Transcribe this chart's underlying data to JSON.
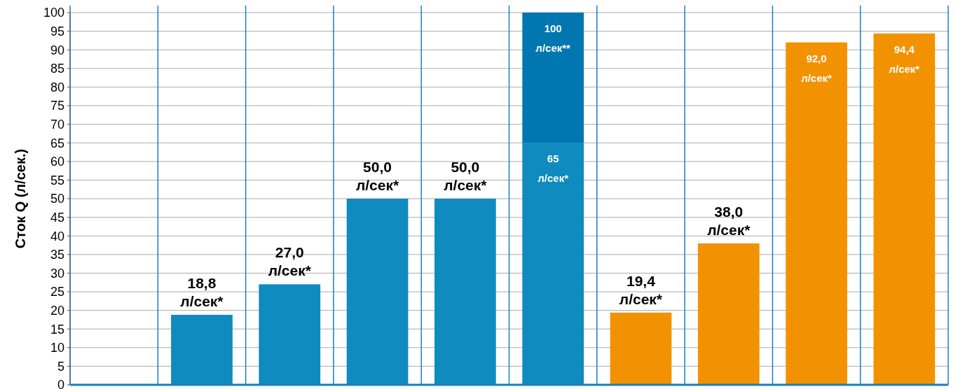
{
  "chart_data": {
    "type": "bar",
    "stacked": true,
    "ylabel": "Сток Q (л/сек.)",
    "categories": [
      null,
      null,
      null,
      null,
      null,
      null,
      null,
      null,
      null,
      null
    ],
    "series": [
      {
        "colors": [
          null,
          "#0f8bbf",
          "#0f8bbf",
          "#0f8bbf",
          "#0f8bbf",
          "#0f8bbf",
          "#f39200",
          "#f39200",
          "#f39200",
          "#f39200"
        ],
        "values": [
          null,
          18.8,
          27.0,
          50.0,
          50.0,
          65,
          19.4,
          38.0,
          92.0,
          94.4
        ],
        "value_labels": [
          null,
          "18,8 л/сек*",
          "27,0 л/сек*",
          "50,0 л/сек*",
          "50,0 л/сек*",
          "65 л/сек*",
          "19,4 л/сек*",
          "38,0 л/сек*",
          "92,0 л/сек*",
          "94,4 л/сек*"
        ]
      },
      {
        "color": "#0077b0",
        "values": [
          null,
          null,
          null,
          null,
          null,
          35,
          null,
          null,
          null,
          null
        ]
      }
    ],
    "totals": [
      null,
      null,
      null,
      null,
      null,
      "100 л/сек**",
      null,
      null,
      null,
      null
    ],
    "ylim": [
      0,
      100
    ],
    "yticks": [
      0,
      5,
      10,
      15,
      20,
      25,
      30,
      35,
      40,
      45,
      50,
      55,
      60,
      65,
      70,
      75,
      80,
      85,
      90,
      95,
      100
    ],
    "grid": true
  }
}
